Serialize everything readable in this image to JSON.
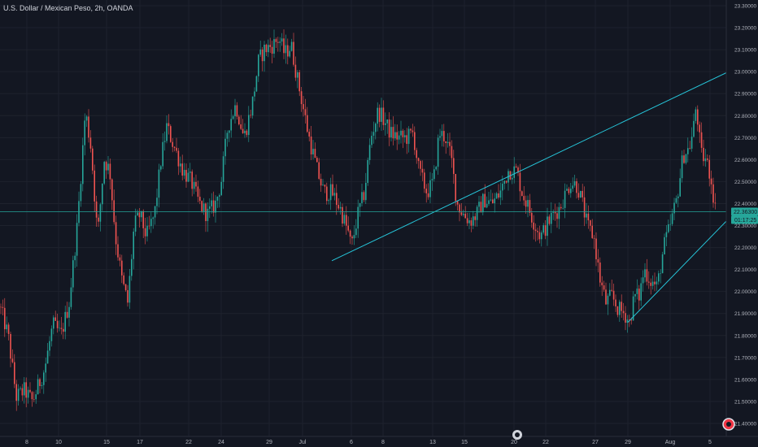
{
  "symbol": {
    "title": "U.S. Dollar / Mexican Peso, 2h, OANDA"
  },
  "colors": {
    "background": "#131722",
    "grid": "#1e222d",
    "axis_text": "#b2b5be",
    "up": "#26a69a",
    "down": "#ef5350",
    "trendline": "#26c6da",
    "price_label_bg": "#26a69a",
    "price_label_text": "#131722"
  },
  "chart_data": {
    "type": "candlestick",
    "y_ticks": [
      "23.30000",
      "23.20000",
      "23.10000",
      "23.00000",
      "22.90000",
      "22.80000",
      "22.70000",
      "22.60000",
      "22.50000",
      "22.40000",
      "22.30000",
      "22.20000",
      "22.10000",
      "22.00000",
      "21.90000",
      "21.80000",
      "21.70000",
      "21.60000",
      "21.50000",
      "21.40000"
    ],
    "ylim": [
      21.37,
      23.32
    ],
    "x_ticks": [
      "8",
      "10",
      "15",
      "17",
      "22",
      "24",
      "29",
      "Jul",
      "6",
      "8",
      "13",
      "15",
      "20",
      "22",
      "27",
      "29",
      "Aug",
      "5"
    ],
    "current_price": 22.363,
    "current_price_label": "22.36300",
    "countdown_label": "01:17:25",
    "close_path": [
      [
        0,
        21.93
      ],
      [
        10,
        21.8
      ],
      [
        20,
        21.52
      ],
      [
        30,
        21.55
      ],
      [
        40,
        21.5
      ],
      [
        55,
        21.65
      ],
      [
        65,
        21.85
      ],
      [
        75,
        21.8
      ],
      [
        85,
        21.95
      ],
      [
        95,
        22.3
      ],
      [
        105,
        22.82
      ],
      [
        112,
        22.65
      ],
      [
        120,
        22.25
      ],
      [
        128,
        22.6
      ],
      [
        135,
        22.55
      ],
      [
        142,
        22.25
      ],
      [
        150,
        22.05
      ],
      [
        157,
        21.95
      ],
      [
        165,
        22.3
      ],
      [
        172,
        22.35
      ],
      [
        180,
        22.25
      ],
      [
        190,
        22.35
      ],
      [
        198,
        22.6
      ],
      [
        205,
        22.75
      ],
      [
        215,
        22.65
      ],
      [
        225,
        22.55
      ],
      [
        235,
        22.5
      ],
      [
        245,
        22.4
      ],
      [
        255,
        22.35
      ],
      [
        265,
        22.4
      ],
      [
        272,
        22.5
      ],
      [
        280,
        22.75
      ],
      [
        290,
        22.85
      ],
      [
        300,
        22.7
      ],
      [
        310,
        22.85
      ],
      [
        318,
        23.05
      ],
      [
        325,
        23.1
      ],
      [
        335,
        23.12
      ],
      [
        343,
        23.15
      ],
      [
        350,
        23.08
      ],
      [
        358,
        23.12
      ],
      [
        365,
        22.98
      ],
      [
        372,
        22.85
      ],
      [
        380,
        22.7
      ],
      [
        390,
        22.55
      ],
      [
        398,
        22.45
      ],
      [
        408,
        22.45
      ],
      [
        418,
        22.38
      ],
      [
        428,
        22.27
      ],
      [
        432,
        22.2
      ],
      [
        440,
        22.35
      ],
      [
        448,
        22.45
      ],
      [
        456,
        22.7
      ],
      [
        465,
        22.82
      ],
      [
        472,
        22.78
      ],
      [
        480,
        22.72
      ],
      [
        490,
        22.7
      ],
      [
        500,
        22.7
      ],
      [
        508,
        22.72
      ],
      [
        515,
        22.55
      ],
      [
        525,
        22.45
      ],
      [
        533,
        22.5
      ],
      [
        540,
        22.72
      ],
      [
        548,
        22.7
      ],
      [
        555,
        22.6
      ],
      [
        562,
        22.4
      ],
      [
        570,
        22.35
      ],
      [
        578,
        22.32
      ],
      [
        586,
        22.35
      ],
      [
        595,
        22.42
      ],
      [
        605,
        22.4
      ],
      [
        615,
        22.45
      ],
      [
        625,
        22.55
      ],
      [
        635,
        22.55
      ],
      [
        642,
        22.45
      ],
      [
        650,
        22.38
      ],
      [
        658,
        22.3
      ],
      [
        665,
        22.25
      ],
      [
        672,
        22.3
      ],
      [
        680,
        22.35
      ],
      [
        688,
        22.38
      ],
      [
        696,
        22.45
      ],
      [
        702,
        22.5
      ],
      [
        710,
        22.48
      ],
      [
        716,
        22.4
      ],
      [
        722,
        22.3
      ],
      [
        730,
        22.25
      ],
      [
        738,
        22.05
      ],
      [
        745,
        21.95
      ],
      [
        752,
        21.98
      ],
      [
        760,
        21.92
      ],
      [
        768,
        21.9
      ],
      [
        774,
        21.86
      ],
      [
        780,
        21.98
      ],
      [
        786,
        21.98
      ],
      [
        792,
        22.1
      ],
      [
        800,
        22.05
      ],
      [
        808,
        22.02
      ],
      [
        816,
        22.2
      ],
      [
        824,
        22.3
      ],
      [
        832,
        22.42
      ],
      [
        840,
        22.62
      ],
      [
        847,
        22.65
      ],
      [
        852,
        22.72
      ],
      [
        856,
        22.85
      ],
      [
        862,
        22.62
      ],
      [
        868,
        22.6
      ],
      [
        874,
        22.52
      ],
      [
        880,
        22.36
      ]
    ],
    "trendlines": [
      {
        "x1": 408,
        "y1": 22.14,
        "x2": 893,
        "y2": 22.995
      },
      {
        "x1": 772,
        "y1": 21.86,
        "x2": 893,
        "y2": 22.32
      }
    ]
  }
}
